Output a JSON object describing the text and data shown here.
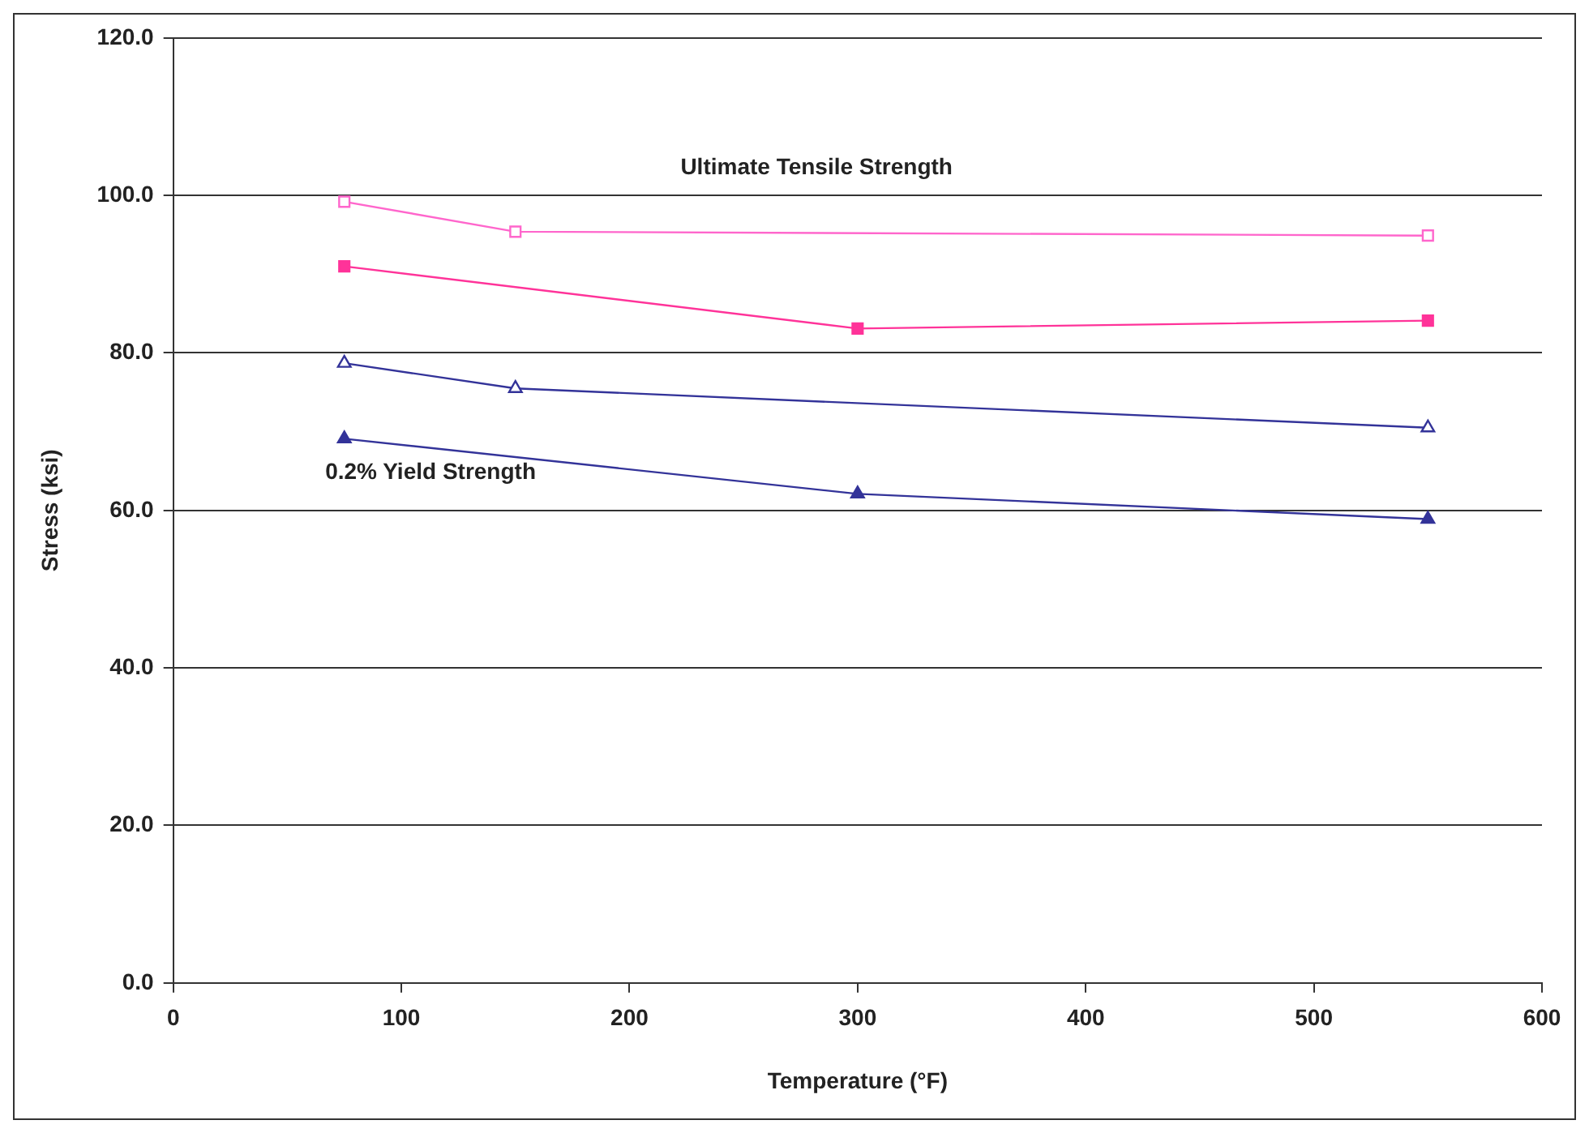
{
  "chart_data": {
    "type": "line",
    "xlabel": "Temperature (°F)",
    "ylabel": "Stress (ksi)",
    "xlim": [
      0,
      600
    ],
    "xticks": [
      0,
      100,
      200,
      300,
      400,
      500,
      600
    ],
    "ylim": [
      0,
      120
    ],
    "yticks": [
      {
        "value": 0,
        "label": "0.0"
      },
      {
        "value": 20,
        "label": "20.0"
      },
      {
        "value": 40,
        "label": "40.0"
      },
      {
        "value": 60,
        "label": "60.0"
      },
      {
        "value": 80,
        "label": "80.0"
      },
      {
        "value": 100,
        "label": "100.0"
      },
      {
        "value": 120,
        "label": "120.0"
      }
    ],
    "grid": "y",
    "legend": false,
    "series": [
      {
        "color": "#ff66cc",
        "marker": "square",
        "x": [
          75,
          150,
          550
        ],
        "values": [
          99.2,
          95.4,
          94.9
        ]
      },
      {
        "color": "#ff3399",
        "marker": "square",
        "x": [
          75,
          300,
          550
        ],
        "values": [
          91.0,
          83.1,
          84.1
        ]
      },
      {
        "color": "#333399",
        "marker": "triangle",
        "x": [
          75,
          150,
          550
        ],
        "values": [
          78.7,
          75.5,
          70.5
        ]
      },
      {
        "color": "#333399",
        "marker": "triangle",
        "x": [
          75,
          300,
          550
        ],
        "values": [
          69.1,
          62.1,
          58.9
        ]
      }
    ],
    "annotations": [
      "Ultimate Tensile Strength",
      "0.2% Yield Strength"
    ]
  }
}
